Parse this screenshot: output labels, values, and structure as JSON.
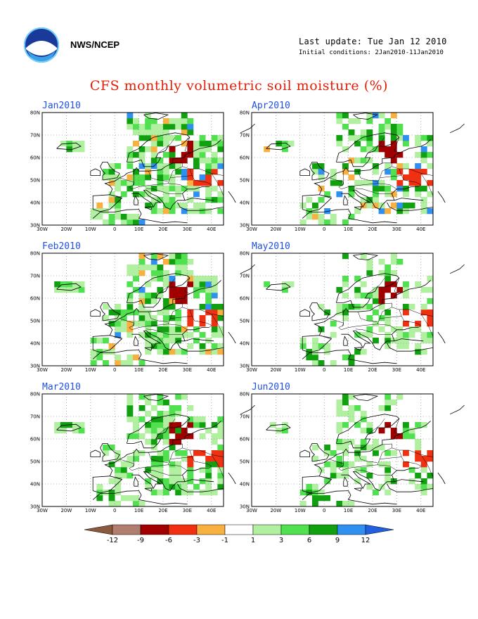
{
  "header": {
    "agency": "NWS/NCEP",
    "last_update": "Last update: Tue Jan 12 2010",
    "initial_conditions": "Initial conditions: 2Jan2010-11Jan2010",
    "logo_icon": "noaa-logo-icon"
  },
  "title": "CFS monthly volumetric soil moisture (%)",
  "panels": [
    {
      "label": "Jan2010"
    },
    {
      "label": "Apr2010"
    },
    {
      "label": "Feb2010"
    },
    {
      "label": "May2010"
    },
    {
      "label": "Mar2010"
    },
    {
      "label": "Jun2010"
    }
  ],
  "axes": {
    "lat_labels": [
      "80N",
      "70N",
      "60N",
      "50N",
      "40N",
      "30N"
    ],
    "lon_labels": [
      "30W",
      "20W",
      "10W",
      "0",
      "10E",
      "20E",
      "30E",
      "40E"
    ]
  },
  "legend": {
    "labels": [
      "-12",
      "-9",
      "-6",
      "-3",
      "-1",
      "1",
      "3",
      "6",
      "9",
      "12"
    ],
    "colors": [
      "#8b5a3c",
      "#b07d6e",
      "#a00000",
      "#f03010",
      "#f8b040",
      "#ffffff",
      "#b0f0a0",
      "#50e050",
      "#10a010",
      "#3090f0",
      "#2060e0"
    ]
  },
  "colors": {
    "title": "#e0200a",
    "panel_label": "#2050e0"
  }
}
